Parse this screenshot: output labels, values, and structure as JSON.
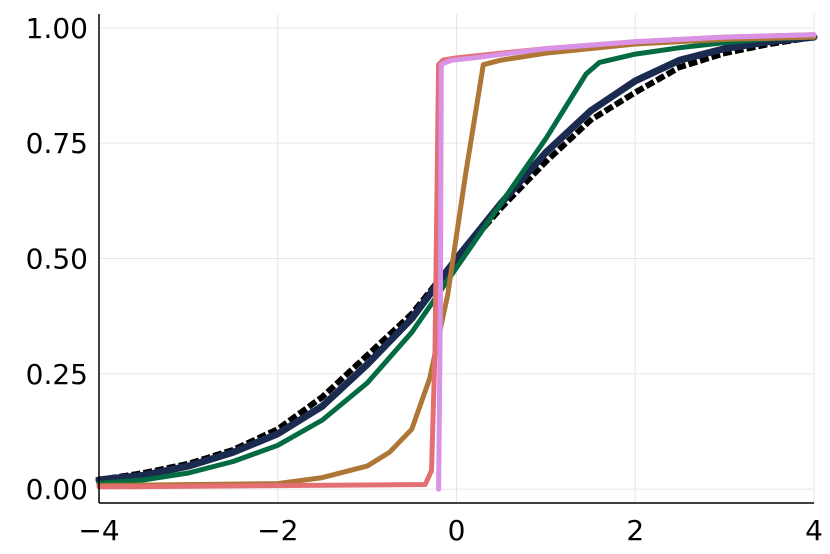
{
  "chart_data": {
    "type": "line",
    "title": "",
    "xlabel": "",
    "ylabel": "",
    "xlim": [
      -4,
      4
    ],
    "ylim": [
      -0.03,
      1.03
    ],
    "grid": true,
    "legend": "none",
    "x_ticks": [
      -4,
      -2,
      0,
      2,
      4
    ],
    "x_tick_labels": [
      "−4",
      "−2",
      "0",
      "2",
      "4"
    ],
    "y_ticks": [
      0,
      0.25,
      0.5,
      0.75,
      1.0
    ],
    "y_tick_labels": [
      "0.00",
      "0.25",
      "0.50",
      "0.75",
      "1.00"
    ],
    "series": [
      {
        "color": "#000000",
        "dash": "dotted",
        "width": 6,
        "x": [
          -4,
          -3.5,
          -3,
          -2.5,
          -2,
          -1.5,
          -1,
          -0.5,
          0,
          0.5,
          1,
          1.5,
          2,
          2.5,
          3,
          3.5,
          4
        ],
        "y": [
          0.02,
          0.035,
          0.055,
          0.085,
          0.13,
          0.2,
          0.29,
          0.38,
          0.5,
          0.61,
          0.71,
          0.8,
          0.86,
          0.915,
          0.945,
          0.965,
          0.98
        ]
      },
      {
        "color": "#1b2a4f",
        "dash": "solid",
        "width": 7,
        "x": [
          -4,
          -3.5,
          -3,
          -2.5,
          -2,
          -1.5,
          -1,
          -0.5,
          0,
          0.5,
          1,
          1.5,
          2,
          2.5,
          3,
          3.5,
          4
        ],
        "y": [
          0.02,
          0.03,
          0.05,
          0.08,
          0.12,
          0.18,
          0.27,
          0.37,
          0.5,
          0.62,
          0.73,
          0.82,
          0.885,
          0.93,
          0.955,
          0.97,
          0.98
        ]
      },
      {
        "color": "#046a42",
        "dash": "solid",
        "width": 5,
        "x": [
          -4,
          -3.5,
          -3,
          -2.5,
          -2,
          -1.5,
          -1,
          -0.5,
          0,
          0.5,
          1,
          1.45,
          1.6,
          2,
          2.5,
          3,
          3.5,
          4
        ],
        "y": [
          0.013,
          0.02,
          0.035,
          0.06,
          0.095,
          0.15,
          0.23,
          0.34,
          0.48,
          0.62,
          0.76,
          0.9,
          0.925,
          0.943,
          0.957,
          0.968,
          0.976,
          0.98
        ]
      },
      {
        "color": "#ae7737",
        "dash": "solid",
        "width": 5,
        "x": [
          -4,
          -2,
          -1.5,
          -1,
          -0.75,
          -0.5,
          -0.3,
          -0.1,
          0.1,
          0.3,
          0.5,
          1,
          2,
          3,
          4
        ],
        "y": [
          0.008,
          0.012,
          0.025,
          0.05,
          0.08,
          0.13,
          0.24,
          0.42,
          0.68,
          0.92,
          0.93,
          0.945,
          0.965,
          0.975,
          0.98
        ]
      },
      {
        "color": "#e36f73",
        "dash": "solid",
        "width": 5,
        "x": [
          -4,
          -0.35,
          -0.28,
          -0.24,
          -0.2,
          -0.15,
          0,
          1,
          2,
          3,
          4
        ],
        "y": [
          0.005,
          0.01,
          0.04,
          0.3,
          0.92,
          0.93,
          0.935,
          0.955,
          0.97,
          0.98,
          0.985
        ]
      },
      {
        "color": "#d992e5",
        "dash": "solid",
        "width": 5,
        "x": [
          -0.2,
          -0.18,
          -0.17,
          -0.12,
          -0.05,
          0.2,
          1,
          2,
          3,
          4
        ],
        "y": [
          0.0,
          0.4,
          0.92,
          0.925,
          0.93,
          0.935,
          0.955,
          0.97,
          0.98,
          0.985
        ]
      }
    ]
  }
}
